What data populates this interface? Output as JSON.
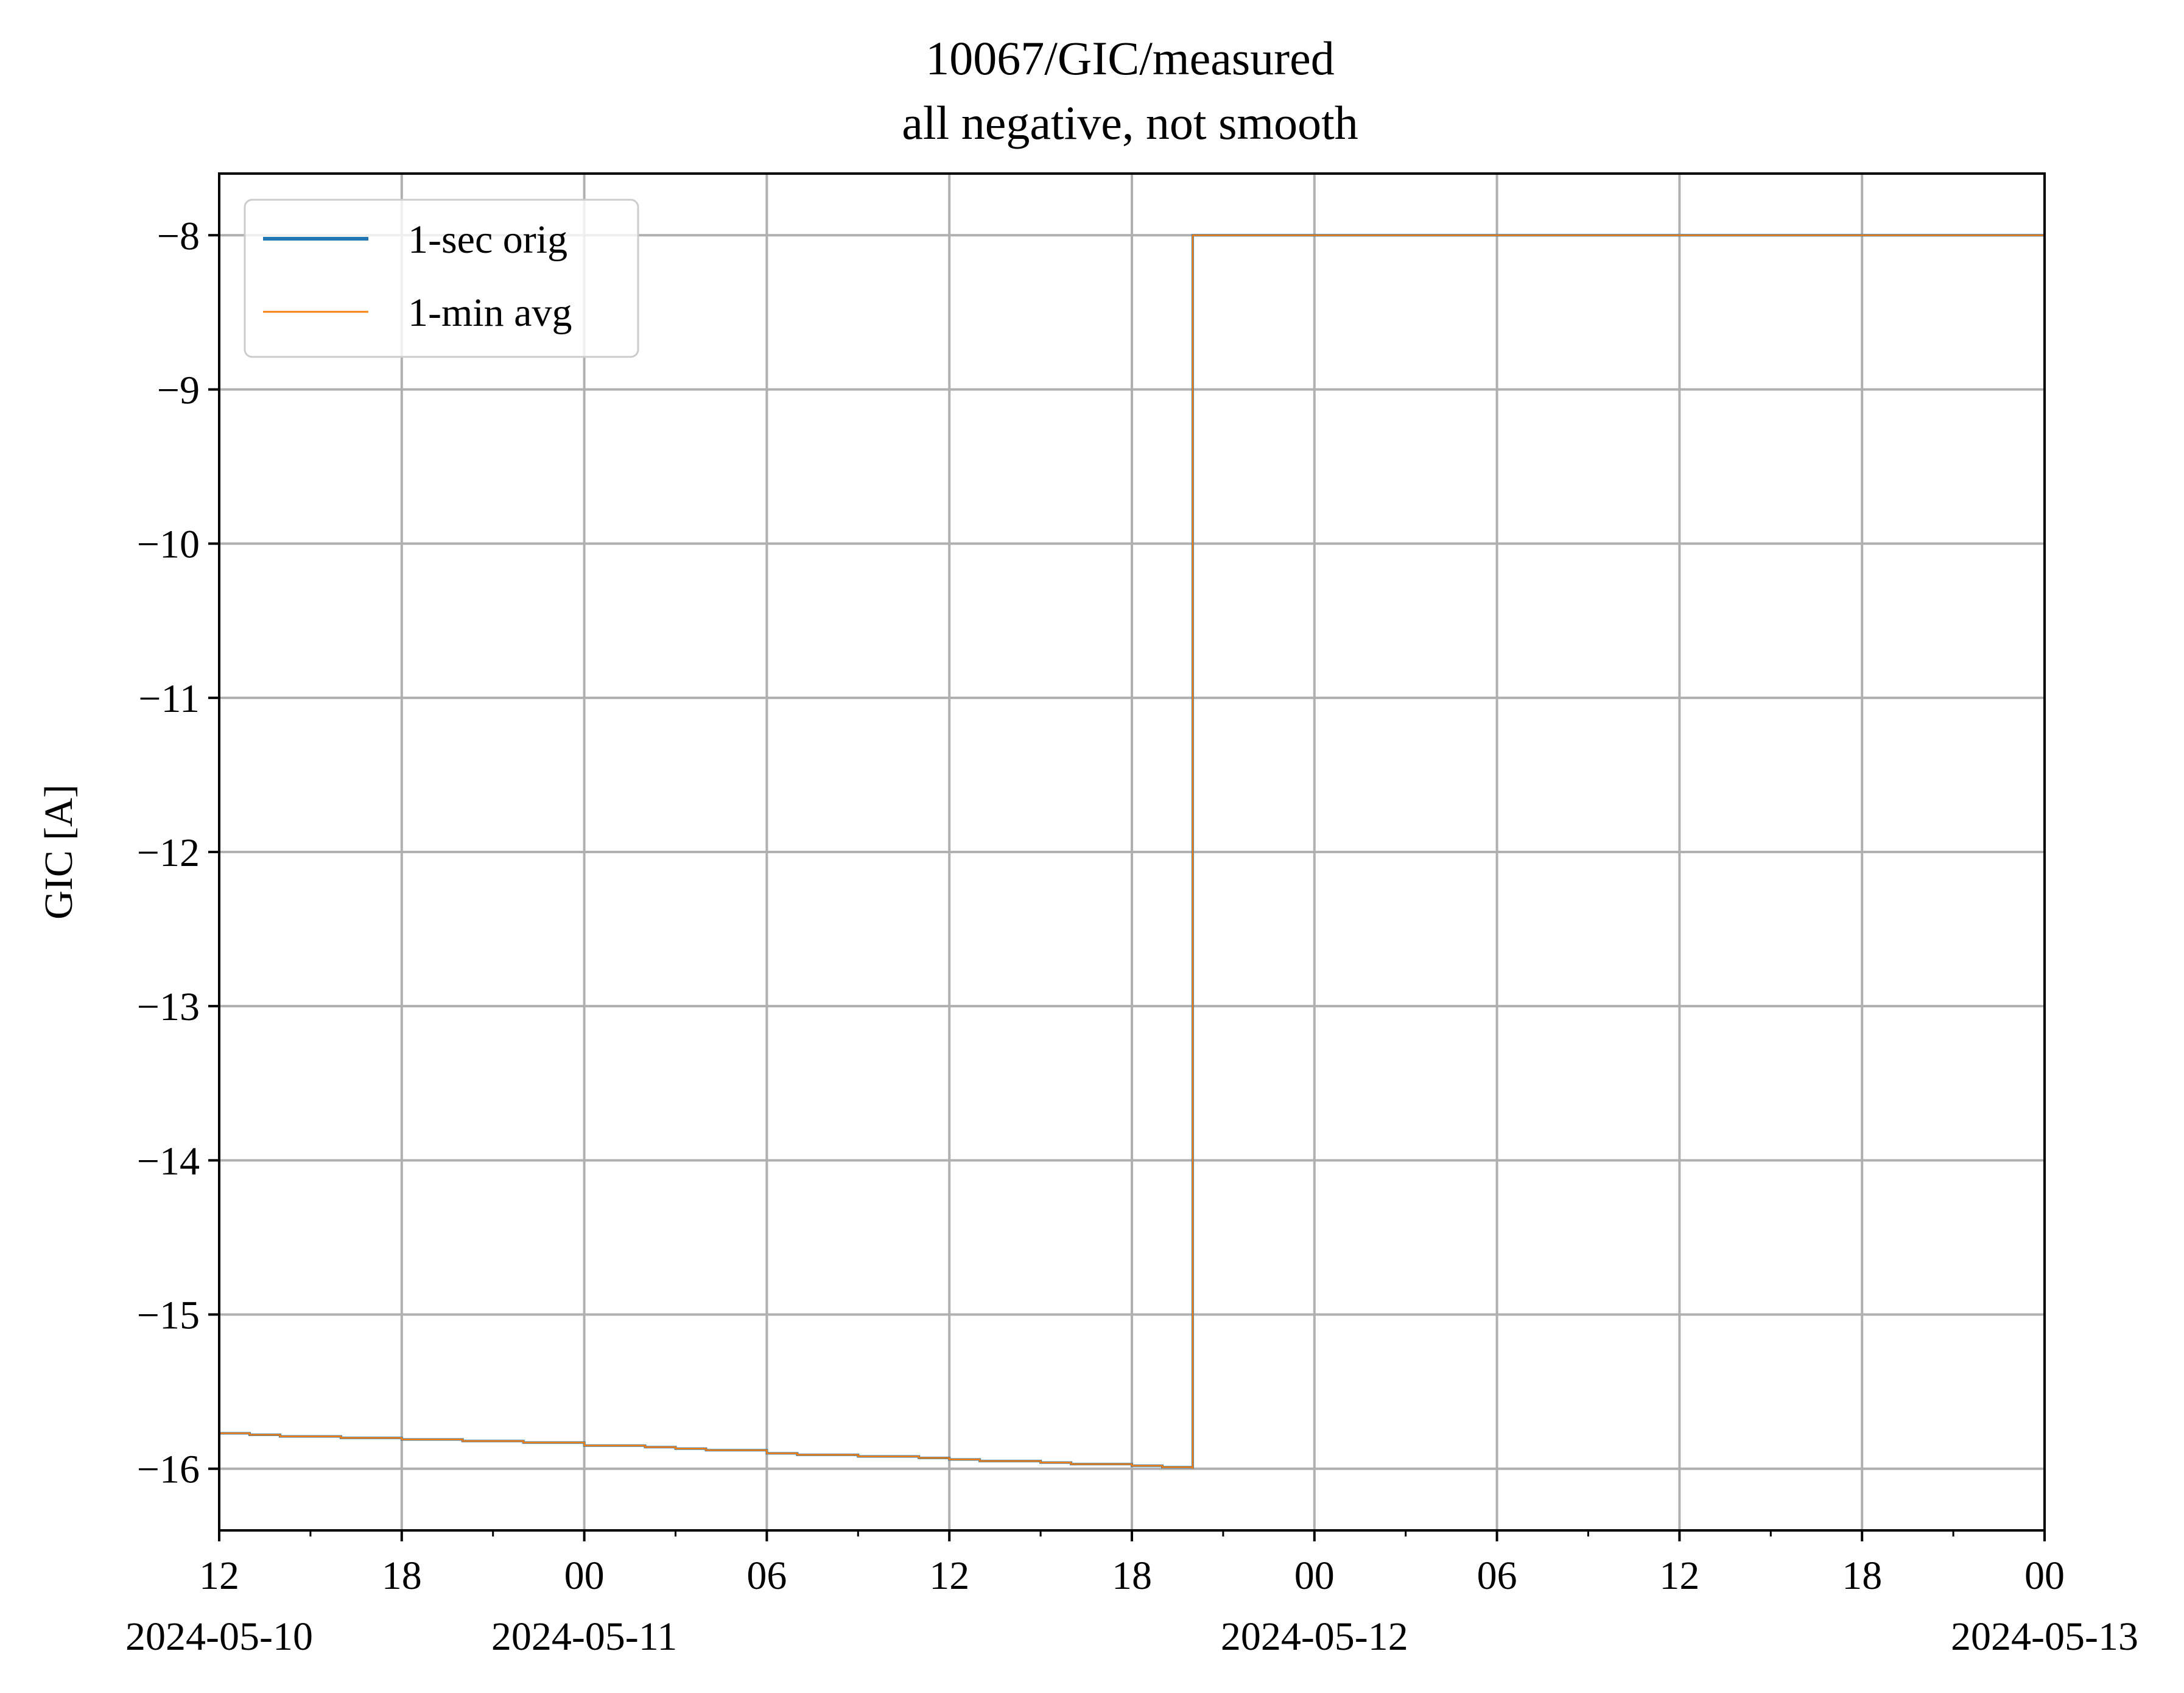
{
  "chart_data": {
    "type": "line",
    "title": "10067/GIC/measured",
    "subtitle": "all negative, not smooth",
    "xlabel": "",
    "ylabel": "GIC [A]",
    "grid": true,
    "legend_position": "top-left",
    "xlim": [
      "2024-05-10T12:00",
      "2024-05-13T00:00"
    ],
    "ylim": [
      -16.4,
      -7.6
    ],
    "x_ticks": [
      {
        "x": "2024-05-10T12:00",
        "label": "12",
        "date": "2024-05-10"
      },
      {
        "x": "2024-05-10T18:00",
        "label": "18",
        "date": ""
      },
      {
        "x": "2024-05-11T00:00",
        "label": "00",
        "date": "2024-05-11"
      },
      {
        "x": "2024-05-11T06:00",
        "label": "06",
        "date": ""
      },
      {
        "x": "2024-05-11T12:00",
        "label": "12",
        "date": ""
      },
      {
        "x": "2024-05-11T18:00",
        "label": "18",
        "date": ""
      },
      {
        "x": "2024-05-12T00:00",
        "label": "00",
        "date": "2024-05-12"
      },
      {
        "x": "2024-05-12T06:00",
        "label": "06",
        "date": ""
      },
      {
        "x": "2024-05-12T12:00",
        "label": "12",
        "date": ""
      },
      {
        "x": "2024-05-12T18:00",
        "label": "18",
        "date": ""
      },
      {
        "x": "2024-05-13T00:00",
        "label": "00",
        "date": "2024-05-13"
      }
    ],
    "x_minor_ticks": [
      "2024-05-10T15:00",
      "2024-05-10T21:00",
      "2024-05-11T03:00",
      "2024-05-11T09:00",
      "2024-05-11T15:00",
      "2024-05-11T21:00",
      "2024-05-12T03:00",
      "2024-05-12T09:00",
      "2024-05-12T15:00",
      "2024-05-12T21:00"
    ],
    "y_ticks": [
      {
        "y": -8,
        "label": "−8"
      },
      {
        "y": -9,
        "label": "−9"
      },
      {
        "y": -10,
        "label": "−10"
      },
      {
        "y": -11,
        "label": "−11"
      },
      {
        "y": -12,
        "label": "−12"
      },
      {
        "y": -13,
        "label": "−13"
      },
      {
        "y": -14,
        "label": "−14"
      },
      {
        "y": -15,
        "label": "−15"
      },
      {
        "y": -16,
        "label": "−16"
      }
    ],
    "series": [
      {
        "name": "1-sec orig",
        "color": "#1f77b4",
        "style": "steps",
        "points": [
          {
            "x": "2024-05-10T12:00",
            "y": -15.77
          },
          {
            "x": "2024-05-10T13:00",
            "y": -15.78
          },
          {
            "x": "2024-05-10T14:00",
            "y": -15.79
          },
          {
            "x": "2024-05-10T16:00",
            "y": -15.8
          },
          {
            "x": "2024-05-10T18:00",
            "y": -15.81
          },
          {
            "x": "2024-05-10T20:00",
            "y": -15.82
          },
          {
            "x": "2024-05-10T22:00",
            "y": -15.83
          },
          {
            "x": "2024-05-11T00:00",
            "y": -15.85
          },
          {
            "x": "2024-05-11T02:00",
            "y": -15.86
          },
          {
            "x": "2024-05-11T03:00",
            "y": -15.87
          },
          {
            "x": "2024-05-11T04:00",
            "y": -15.88
          },
          {
            "x": "2024-05-11T06:00",
            "y": -15.9
          },
          {
            "x": "2024-05-11T07:00",
            "y": -15.91
          },
          {
            "x": "2024-05-11T09:00",
            "y": -15.92
          },
          {
            "x": "2024-05-11T11:00",
            "y": -15.93
          },
          {
            "x": "2024-05-11T12:00",
            "y": -15.94
          },
          {
            "x": "2024-05-11T13:00",
            "y": -15.95
          },
          {
            "x": "2024-05-11T15:00",
            "y": -15.96
          },
          {
            "x": "2024-05-11T16:00",
            "y": -15.97
          },
          {
            "x": "2024-05-11T18:00",
            "y": -15.98
          },
          {
            "x": "2024-05-11T19:00",
            "y": -15.99
          },
          {
            "x": "2024-05-11T20:00",
            "y": -16.0
          },
          {
            "x": "2024-05-11T20:00",
            "y": -8.0
          },
          {
            "x": "2024-05-13T00:00",
            "y": -8.0
          }
        ]
      },
      {
        "name": "1-min avg",
        "color": "#ff7f0e",
        "style": "steps",
        "points": [
          {
            "x": "2024-05-10T12:00",
            "y": -15.77
          },
          {
            "x": "2024-05-10T13:00",
            "y": -15.78
          },
          {
            "x": "2024-05-10T14:00",
            "y": -15.79
          },
          {
            "x": "2024-05-10T16:00",
            "y": -15.8
          },
          {
            "x": "2024-05-10T18:00",
            "y": -15.81
          },
          {
            "x": "2024-05-10T20:00",
            "y": -15.82
          },
          {
            "x": "2024-05-10T22:00",
            "y": -15.83
          },
          {
            "x": "2024-05-11T00:00",
            "y": -15.85
          },
          {
            "x": "2024-05-11T02:00",
            "y": -15.86
          },
          {
            "x": "2024-05-11T03:00",
            "y": -15.87
          },
          {
            "x": "2024-05-11T04:00",
            "y": -15.88
          },
          {
            "x": "2024-05-11T06:00",
            "y": -15.9
          },
          {
            "x": "2024-05-11T07:00",
            "y": -15.91
          },
          {
            "x": "2024-05-11T09:00",
            "y": -15.92
          },
          {
            "x": "2024-05-11T11:00",
            "y": -15.93
          },
          {
            "x": "2024-05-11T12:00",
            "y": -15.94
          },
          {
            "x": "2024-05-11T13:00",
            "y": -15.95
          },
          {
            "x": "2024-05-11T15:00",
            "y": -15.96
          },
          {
            "x": "2024-05-11T16:00",
            "y": -15.97
          },
          {
            "x": "2024-05-11T18:00",
            "y": -15.98
          },
          {
            "x": "2024-05-11T19:00",
            "y": -15.99
          },
          {
            "x": "2024-05-11T20:00",
            "y": -16.0
          },
          {
            "x": "2024-05-11T20:00",
            "y": -8.0
          },
          {
            "x": "2024-05-13T00:00",
            "y": -8.0
          }
        ]
      }
    ]
  }
}
